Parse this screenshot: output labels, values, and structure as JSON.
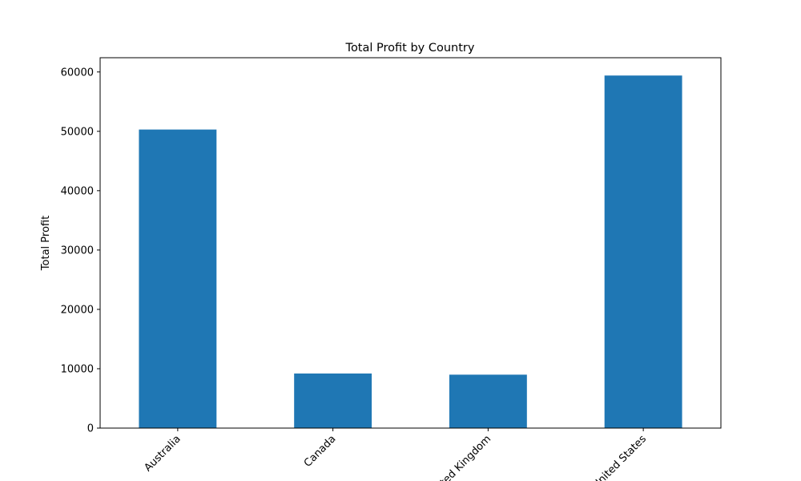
{
  "chart_data": {
    "type": "bar",
    "title": "Total Profit by Country",
    "xlabel": "",
    "ylabel": "Total Profit",
    "categories": [
      "Australia",
      "Canada",
      "United Kingdom",
      "United States"
    ],
    "values": [
      50300,
      9200,
      9000,
      59400
    ],
    "ylim": [
      0,
      62400
    ],
    "yticks": [
      0,
      10000,
      20000,
      30000,
      40000,
      50000,
      60000
    ],
    "bar_color": "#1f77b4",
    "grid": false,
    "legend": "none"
  }
}
